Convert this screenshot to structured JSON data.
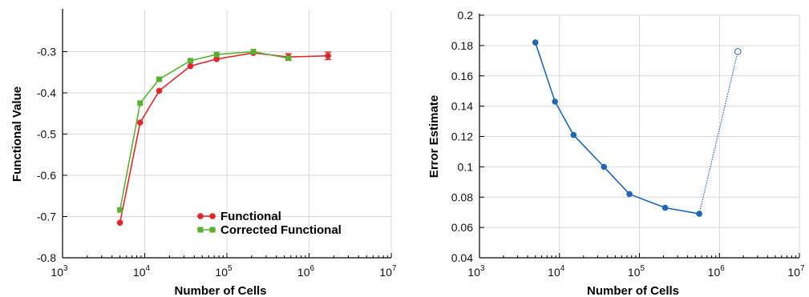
{
  "chart_data": [
    {
      "type": "line",
      "title": "",
      "xlabel": "Number of Cells",
      "ylabel": "Functional Value",
      "xscale": "log",
      "xlim": [
        1000,
        10000000
      ],
      "ylim": [
        -0.8,
        -0.2
      ],
      "xticks": [
        {
          "base": "10",
          "exp": "3"
        },
        {
          "base": "10",
          "exp": "4"
        },
        {
          "base": "10",
          "exp": "5"
        },
        {
          "base": "10",
          "exp": "6"
        },
        {
          "base": "10",
          "exp": "7"
        }
      ],
      "yticks": [
        "-0.3",
        "-0.4",
        "-0.5",
        "-0.6",
        "-0.7",
        "-0.8"
      ],
      "grid": true,
      "legend_position": "bottom-right",
      "series": [
        {
          "name": "Functional",
          "color": "#e3262a",
          "marker": "circle",
          "x": [
            5000,
            8800,
            15000,
            36000,
            75000,
            210000,
            560000,
            1700000
          ],
          "y": [
            -0.715,
            -0.472,
            -0.395,
            -0.335,
            -0.318,
            -0.303,
            -0.313,
            -0.31
          ],
          "error": [
            0,
            0,
            0,
            0,
            0,
            0,
            0.008,
            0.009
          ]
        },
        {
          "name": "Corrected Functional",
          "color": "#5ab033",
          "marker": "square",
          "x": [
            5000,
            8800,
            15000,
            36000,
            75000,
            210000,
            560000
          ],
          "y": [
            -0.684,
            -0.425,
            -0.367,
            -0.322,
            -0.307,
            -0.3,
            -0.316
          ]
        }
      ]
    },
    {
      "type": "line",
      "title": "",
      "xlabel": "Number of Cells",
      "ylabel": "Error Estimate",
      "xscale": "log",
      "xlim": [
        1000,
        10000000
      ],
      "ylim": [
        0.04,
        0.2
      ],
      "xticks": [
        {
          "base": "10",
          "exp": "3"
        },
        {
          "base": "10",
          "exp": "4"
        },
        {
          "base": "10",
          "exp": "5"
        },
        {
          "base": "10",
          "exp": "6"
        },
        {
          "base": "10",
          "exp": "7"
        }
      ],
      "yticks": [
        "0.2",
        "0.18",
        "0.16",
        "0.14",
        "0.12",
        "0.1",
        "0.08",
        "0.06",
        "0.04"
      ],
      "grid": true,
      "series": [
        {
          "color": "#1f66b5",
          "marker": "circle",
          "x": [
            5000,
            8800,
            15000,
            36000,
            75000,
            210000,
            560000
          ],
          "y": [
            0.182,
            0.143,
            0.121,
            0.1,
            0.082,
            0.073,
            0.069
          ]
        },
        {
          "color": "#1f66b5",
          "marker": "open-circle",
          "line_style": "dotted",
          "x": [
            560000,
            1700000
          ],
          "y": [
            0.069,
            0.176
          ]
        }
      ]
    }
  ]
}
